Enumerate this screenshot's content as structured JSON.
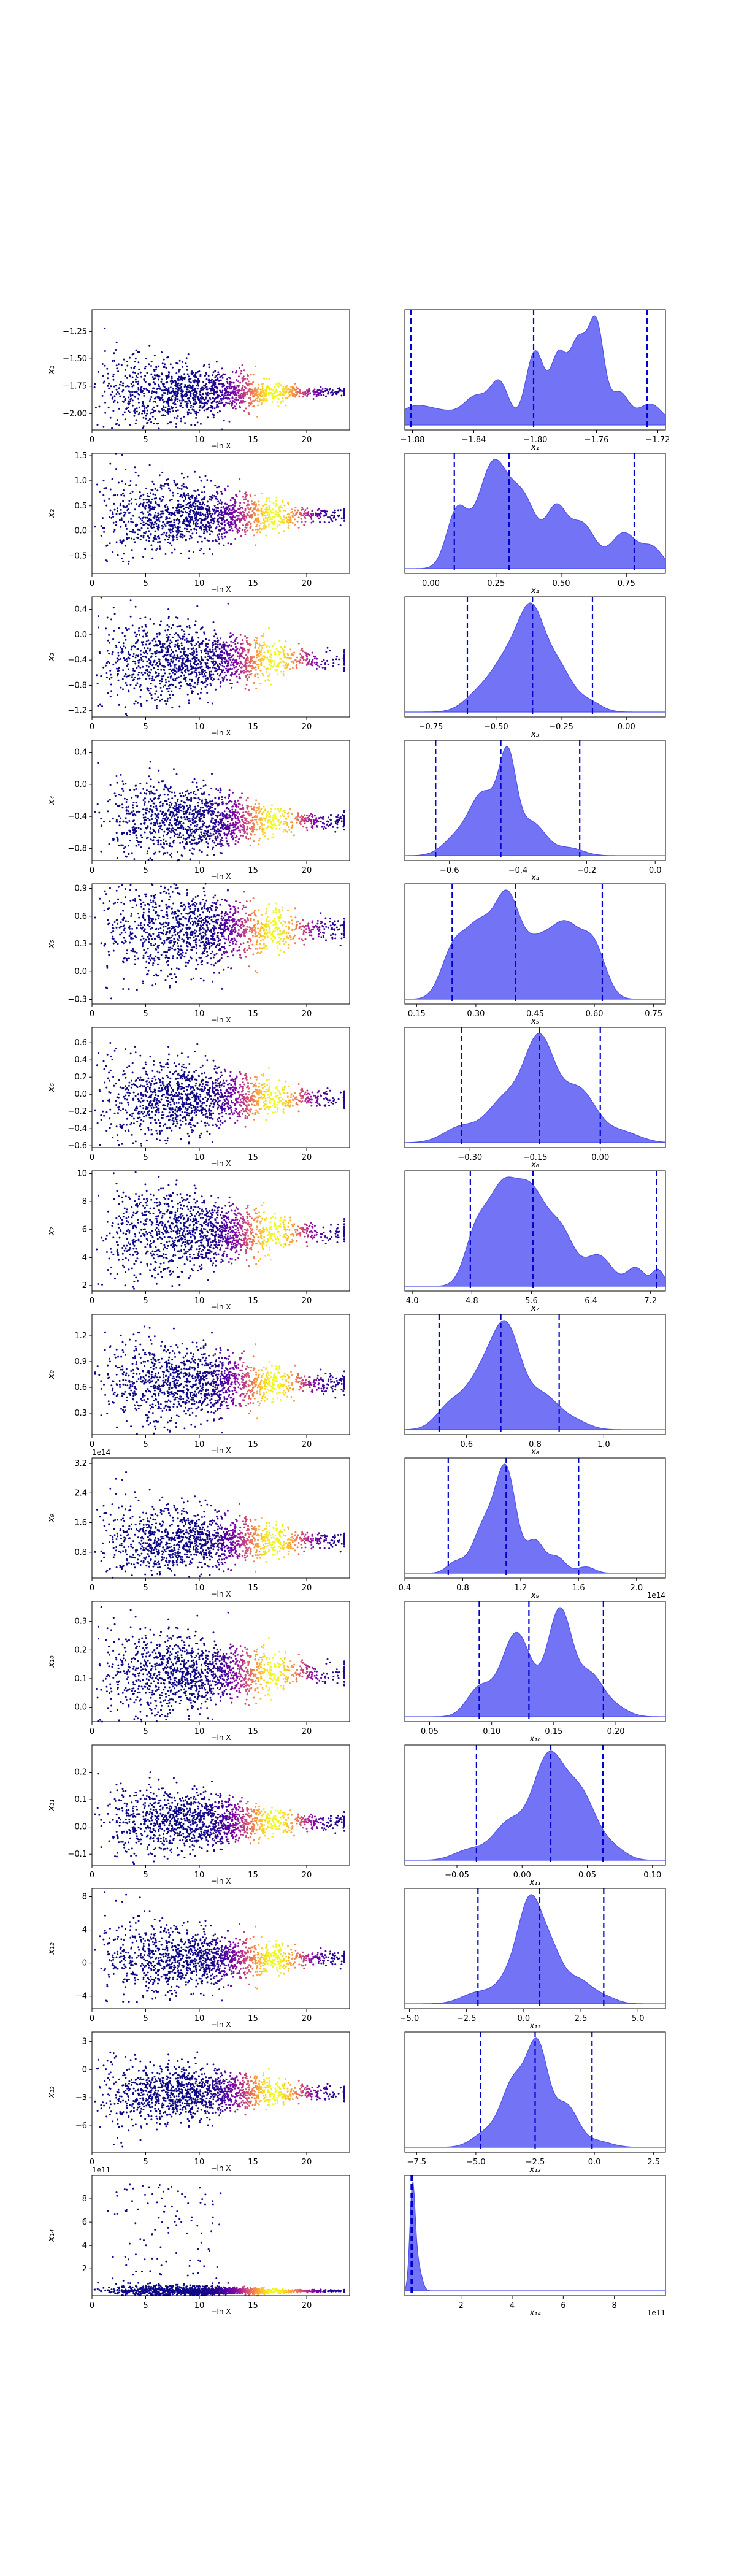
{
  "figure": {
    "scatter_xlabel": "−ln X",
    "scatter_xlim": [
      0,
      24
    ],
    "scatter_xticks": [
      0,
      5,
      10,
      15,
      20
    ],
    "kde_fill_color": "#6464f5",
    "kde_edge_color": "#5050e6",
    "quantile_line_color": "#0000cc",
    "colormap": [
      "#0d0887",
      "#5302a3",
      "#8b0aa5",
      "#b83289",
      "#db5c68",
      "#f48849",
      "#febd2a",
      "#f0f921"
    ]
  },
  "chart_data": [
    {
      "type": "scatter",
      "ylabel": "x₁",
      "ylim": [
        -2.15,
        -1.05
      ],
      "yticks": [
        -2.0,
        -1.75,
        -1.5,
        -1.25
      ],
      "ytick_labels": [
        "−2.00",
        "−1.75",
        "−1.50",
        "−1.25"
      ],
      "center": -1.81,
      "spread": 0.2,
      "tight": 0.02
    },
    {
      "type": "area",
      "xlabel": "x₁",
      "xlim": [
        -1.885,
        -1.715
      ],
      "xticks": [
        -1.88,
        -1.84,
        -1.8,
        -1.76,
        -1.72
      ],
      "xtick_labels": [
        "−1.88",
        "−1.84",
        "−1.80",
        "−1.76",
        "−1.72"
      ],
      "quantiles": [
        -1.881,
        -1.801,
        -1.727
      ],
      "peaks": [
        [
          -1.88,
          0.15,
          0.01
        ],
        [
          -1.86,
          0.12,
          0.012
        ],
        [
          -1.838,
          0.25,
          0.008
        ],
        [
          -1.823,
          0.38,
          0.006
        ],
        [
          -1.8,
          0.7,
          0.006
        ],
        [
          -1.785,
          0.6,
          0.005
        ],
        [
          -1.772,
          0.78,
          0.006
        ],
        [
          -1.76,
          0.9,
          0.005
        ],
        [
          -1.745,
          0.3,
          0.006
        ],
        [
          -1.725,
          0.2,
          0.008
        ]
      ]
    },
    {
      "type": "scatter",
      "ylabel": "x₂",
      "ylim": [
        -0.85,
        1.55
      ],
      "yticks": [
        -0.5,
        0.0,
        0.5,
        1.0,
        1.5
      ],
      "ytick_labels": [
        "−0.5",
        "0.0",
        "0.5",
        "1.0",
        "1.5"
      ],
      "center": 0.3,
      "spread": 0.45,
      "tight": 0.08
    },
    {
      "type": "area",
      "xlabel": "x₂",
      "xlim": [
        -0.1,
        0.9
      ],
      "xticks": [
        0.0,
        0.25,
        0.5,
        0.75
      ],
      "xtick_labels": [
        "0.00",
        "0.25",
        "0.50",
        "0.75"
      ],
      "quantiles": [
        0.09,
        0.3,
        0.78
      ],
      "peaks": [
        [
          0.1,
          0.5,
          0.04
        ],
        [
          0.24,
          0.95,
          0.06
        ],
        [
          0.36,
          0.55,
          0.05
        ],
        [
          0.48,
          0.5,
          0.04
        ],
        [
          0.58,
          0.4,
          0.05
        ],
        [
          0.74,
          0.32,
          0.05
        ],
        [
          0.85,
          0.18,
          0.04
        ]
      ]
    },
    {
      "type": "scatter",
      "ylabel": "x₃",
      "ylim": [
        -1.3,
        0.6
      ],
      "yticks": [
        -1.2,
        -0.8,
        -0.4,
        0.0,
        0.4
      ],
      "ytick_labels": [
        "−1.2",
        "−0.8",
        "−0.4",
        "0.0",
        "0.4"
      ],
      "center": -0.4,
      "spread": 0.35,
      "tight": 0.08
    },
    {
      "type": "area",
      "xlabel": "x₃",
      "xlim": [
        -0.85,
        0.15
      ],
      "xticks": [
        -0.75,
        -0.5,
        -0.25,
        0.0
      ],
      "xtick_labels": [
        "−0.75",
        "−0.50",
        "−0.25",
        "0.00"
      ],
      "quantiles": [
        -0.61,
        -0.36,
        -0.13
      ],
      "peaks": [
        [
          -0.56,
          0.2,
          0.06
        ],
        [
          -0.45,
          0.55,
          0.06
        ],
        [
          -0.36,
          0.95,
          0.05
        ],
        [
          -0.26,
          0.45,
          0.05
        ],
        [
          -0.15,
          0.12,
          0.05
        ]
      ]
    },
    {
      "type": "scatter",
      "ylabel": "x₄",
      "ylim": [
        -0.95,
        0.55
      ],
      "yticks": [
        -0.8,
        -0.4,
        0.0,
        0.4
      ],
      "ytick_labels": [
        "−0.8",
        "−0.4",
        "0.0",
        "0.4"
      ],
      "center": -0.45,
      "spread": 0.3,
      "tight": 0.05
    },
    {
      "type": "area",
      "xlabel": "x₄",
      "xlim": [
        -0.73,
        0.03
      ],
      "xticks": [
        -0.6,
        -0.4,
        -0.2,
        0.0
      ],
      "xtick_labels": [
        "−0.6",
        "−0.4",
        "−0.2",
        "0.0"
      ],
      "quantiles": [
        -0.64,
        -0.45,
        -0.22
      ],
      "peaks": [
        [
          -0.58,
          0.18,
          0.04
        ],
        [
          -0.5,
          0.65,
          0.04
        ],
        [
          -0.43,
          0.95,
          0.025
        ],
        [
          -0.36,
          0.35,
          0.04
        ],
        [
          -0.25,
          0.08,
          0.04
        ]
      ]
    },
    {
      "type": "scatter",
      "ylabel": "x₅",
      "ylim": [
        -0.35,
        0.95
      ],
      "yticks": [
        -0.3,
        0.0,
        0.3,
        0.6,
        0.9
      ],
      "ytick_labels": [
        "−0.3",
        "0.0",
        "0.3",
        "0.6",
        "0.9"
      ],
      "center": 0.45,
      "spread": 0.3,
      "tight": 0.07
    },
    {
      "type": "area",
      "xlabel": "x₅",
      "xlim": [
        0.12,
        0.78
      ],
      "xticks": [
        0.15,
        0.3,
        0.45,
        0.6,
        0.75
      ],
      "xtick_labels": [
        "0.15",
        "0.30",
        "0.45",
        "0.60",
        "0.75"
      ],
      "quantiles": [
        0.24,
        0.4,
        0.62
      ],
      "peaks": [
        [
          0.24,
          0.45,
          0.03
        ],
        [
          0.31,
          0.8,
          0.04
        ],
        [
          0.38,
          0.9,
          0.03
        ],
        [
          0.45,
          0.55,
          0.04
        ],
        [
          0.53,
          0.75,
          0.04
        ],
        [
          0.6,
          0.5,
          0.03
        ]
      ]
    },
    {
      "type": "scatter",
      "ylabel": "x₆",
      "ylim": [
        -0.62,
        0.78
      ],
      "yticks": [
        -0.6,
        -0.4,
        -0.2,
        0.0,
        0.2,
        0.4,
        0.6
      ],
      "ytick_labels": [
        "−0.6",
        "−0.4",
        "−0.2",
        "0.0",
        "0.2",
        "0.4",
        "0.6"
      ],
      "center": -0.05,
      "spread": 0.28,
      "tight": 0.05
    },
    {
      "type": "area",
      "xlabel": "x₆",
      "xlim": [
        -0.45,
        0.15
      ],
      "xticks": [
        -0.3,
        -0.15,
        0.0
      ],
      "xtick_labels": [
        "−0.30",
        "−0.15",
        "0.00"
      ],
      "quantiles": [
        -0.32,
        -0.14,
        0.0
      ],
      "peaks": [
        [
          -0.32,
          0.15,
          0.04
        ],
        [
          -0.22,
          0.4,
          0.04
        ],
        [
          -0.14,
          0.95,
          0.035
        ],
        [
          -0.05,
          0.5,
          0.04
        ],
        [
          0.05,
          0.1,
          0.04
        ]
      ]
    },
    {
      "type": "scatter",
      "ylabel": "x₇",
      "ylim": [
        1.6,
        10.2
      ],
      "yticks": [
        2,
        4,
        6,
        8,
        10
      ],
      "ytick_labels": [
        "2",
        "4",
        "6",
        "8",
        "10"
      ],
      "center": 5.8,
      "spread": 1.8,
      "tight": 0.4
    },
    {
      "type": "area",
      "xlabel": "x₇",
      "xlim": [
        3.9,
        7.4
      ],
      "xticks": [
        4.0,
        4.8,
        5.6,
        6.4,
        7.2
      ],
      "xtick_labels": [
        "4.0",
        "4.8",
        "5.6",
        "6.4",
        "7.2"
      ],
      "quantiles": [
        4.78,
        5.62,
        7.28
      ],
      "peaks": [
        [
          4.85,
          0.45,
          0.15
        ],
        [
          5.2,
          0.9,
          0.2
        ],
        [
          5.6,
          0.85,
          0.2
        ],
        [
          6.0,
          0.5,
          0.18
        ],
        [
          6.5,
          0.3,
          0.18
        ],
        [
          7.0,
          0.18,
          0.12
        ],
        [
          7.3,
          0.16,
          0.08
        ]
      ]
    },
    {
      "type": "scatter",
      "ylabel": "x₈",
      "ylim": [
        0.05,
        1.45
      ],
      "yticks": [
        0.3,
        0.6,
        0.9,
        1.2
      ],
      "ytick_labels": [
        "0.3",
        "0.6",
        "0.9",
        "1.2"
      ],
      "center": 0.65,
      "spread": 0.28,
      "tight": 0.06
    },
    {
      "type": "area",
      "xlabel": "x₈",
      "xlim": [
        0.42,
        1.18
      ],
      "xticks": [
        0.6,
        0.8,
        1.0
      ],
      "xtick_labels": [
        "0.6",
        "0.8",
        "1.0"
      ],
      "quantiles": [
        0.52,
        0.7,
        0.87
      ],
      "peaks": [
        [
          0.55,
          0.25,
          0.04
        ],
        [
          0.65,
          0.65,
          0.05
        ],
        [
          0.72,
          0.95,
          0.04
        ],
        [
          0.82,
          0.4,
          0.05
        ],
        [
          0.92,
          0.08,
          0.04
        ]
      ]
    },
    {
      "type": "scatter",
      "ylabel": "x₉",
      "y_offset_label": "1e14",
      "ylim": [
        0.1,
        3.35
      ],
      "yticks": [
        0.8,
        1.6,
        2.4,
        3.2
      ],
      "ytick_labels": [
        "0.8",
        "1.6",
        "2.4",
        "3.2"
      ],
      "center": 1.1,
      "spread": 0.6,
      "tight": 0.12
    },
    {
      "type": "area",
      "xlabel": "x₉",
      "x_offset_label": "1e14",
      "xlim": [
        0.4,
        2.2
      ],
      "xticks": [
        0.4,
        0.8,
        1.2,
        1.6,
        2.0
      ],
      "xtick_labels": [
        "0.4",
        "0.8",
        "1.2",
        "1.6",
        "2.0"
      ],
      "quantiles": [
        0.7,
        1.1,
        1.6
      ],
      "peaks": [
        [
          0.75,
          0.1,
          0.06
        ],
        [
          0.95,
          0.45,
          0.08
        ],
        [
          1.1,
          0.95,
          0.07
        ],
        [
          1.3,
          0.3,
          0.06
        ],
        [
          1.45,
          0.15,
          0.06
        ],
        [
          1.65,
          0.06,
          0.06
        ]
      ]
    },
    {
      "type": "scatter",
      "ylabel": "x₁₀",
      "ylim": [
        -0.05,
        0.37
      ],
      "yticks": [
        0.0,
        0.1,
        0.2,
        0.3
      ],
      "ytick_labels": [
        "0.0",
        "0.1",
        "0.2",
        "0.3"
      ],
      "center": 0.12,
      "spread": 0.08,
      "tight": 0.02
    },
    {
      "type": "area",
      "xlabel": "x₁₀",
      "xlim": [
        0.03,
        0.24
      ],
      "xticks": [
        0.05,
        0.1,
        0.15,
        0.2
      ],
      "xtick_labels": [
        "0.05",
        "0.10",
        "0.15",
        "0.20"
      ],
      "quantiles": [
        0.09,
        0.13,
        0.19
      ],
      "peaks": [
        [
          0.09,
          0.25,
          0.01
        ],
        [
          0.12,
          0.75,
          0.012
        ],
        [
          0.155,
          0.95,
          0.01
        ],
        [
          0.18,
          0.35,
          0.01
        ],
        [
          0.2,
          0.08,
          0.01
        ]
      ]
    },
    {
      "type": "scatter",
      "ylabel": "x₁₁",
      "ylim": [
        -0.14,
        0.3
      ],
      "yticks": [
        -0.1,
        0.0,
        0.1,
        0.2
      ],
      "ytick_labels": [
        "−0.1",
        "0.0",
        "0.1",
        "0.2"
      ],
      "center": 0.02,
      "spread": 0.07,
      "tight": 0.015
    },
    {
      "type": "area",
      "xlabel": "x₁₁",
      "xlim": [
        -0.09,
        0.11
      ],
      "xticks": [
        -0.05,
        0.0,
        0.05,
        0.1
      ],
      "xtick_labels": [
        "−0.05",
        "0.00",
        "0.05",
        "0.10"
      ],
      "quantiles": [
        -0.035,
        0.022,
        0.062
      ],
      "peaks": [
        [
          -0.04,
          0.1,
          0.012
        ],
        [
          -0.01,
          0.35,
          0.012
        ],
        [
          0.02,
          0.95,
          0.012
        ],
        [
          0.045,
          0.6,
          0.012
        ],
        [
          0.07,
          0.1,
          0.01
        ]
      ]
    },
    {
      "type": "scatter",
      "ylabel": "x₁₂",
      "ylim": [
        -5.5,
        9.0
      ],
      "yticks": [
        -4,
        0,
        4,
        8
      ],
      "ytick_labels": [
        "−4",
        "0",
        "4",
        "8"
      ],
      "center": 0.5,
      "spread": 2.5,
      "tight": 0.5
    },
    {
      "type": "area",
      "xlabel": "x₁₂",
      "xlim": [
        -5.2,
        6.2
      ],
      "xticks": [
        -5.0,
        -2.5,
        0.0,
        2.5,
        5.0
      ],
      "xtick_labels": [
        "−5.0",
        "−2.5",
        "0.0",
        "2.5",
        "5.0"
      ],
      "quantiles": [
        -2.0,
        0.7,
        3.5
      ],
      "peaks": [
        [
          -2.0,
          0.12,
          0.7
        ],
        [
          -0.5,
          0.3,
          0.6
        ],
        [
          0.3,
          0.95,
          0.5
        ],
        [
          1.2,
          0.5,
          0.5
        ],
        [
          2.4,
          0.25,
          0.6
        ],
        [
          3.6,
          0.06,
          0.5
        ]
      ]
    },
    {
      "type": "scatter",
      "ylabel": "x₁₃",
      "ylim": [
        -8.8,
        4.0
      ],
      "yticks": [
        -6,
        -3,
        0,
        3
      ],
      "ytick_labels": [
        "−6",
        "−3",
        "0",
        "3"
      ],
      "center": -2.5,
      "spread": 1.8,
      "tight": 0.4
    },
    {
      "type": "area",
      "xlabel": "x₁₃",
      "xlim": [
        -8.0,
        3.0
      ],
      "xticks": [
        -7.5,
        -5.0,
        -2.5,
        0.0,
        2.5
      ],
      "xtick_labels": [
        "−7.5",
        "−5.0",
        "−2.5",
        "0.0",
        "2.5"
      ],
      "quantiles": [
        -4.8,
        -2.5,
        -0.1
      ],
      "peaks": [
        [
          -4.5,
          0.15,
          0.6
        ],
        [
          -3.4,
          0.6,
          0.5
        ],
        [
          -2.4,
          0.95,
          0.45
        ],
        [
          -1.2,
          0.4,
          0.5
        ],
        [
          0.1,
          0.06,
          0.6
        ]
      ]
    },
    {
      "type": "scatter",
      "ylabel": "x₁₄",
      "y_offset_label": "1e11",
      "ylim": [
        -0.3,
        10.0
      ],
      "yticks": [
        2,
        4,
        6,
        8
      ],
      "ytick_labels": [
        "2",
        "4",
        "6",
        "8"
      ],
      "center": 0.1,
      "spread": 0.3,
      "tight": 0.05,
      "outliers": true
    },
    {
      "type": "area",
      "xlabel": "x₁₄",
      "x_offset_label": "1e11",
      "xlim": [
        -0.2,
        10.0
      ],
      "xticks": [
        2,
        4,
        6,
        8
      ],
      "xtick_labels": [
        "2",
        "4",
        "6",
        "8"
      ],
      "quantiles": [
        0.05,
        0.1
      ],
      "peaks": [
        [
          0.1,
          0.95,
          0.1
        ],
        [
          0.3,
          0.25,
          0.15
        ]
      ]
    }
  ]
}
